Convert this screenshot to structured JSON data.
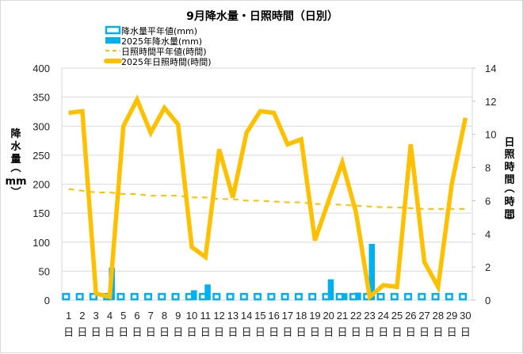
{
  "chart_data": {
    "type": "bar+line",
    "title": "9月降水量・日照時間（日別）",
    "xlabel": "",
    "ylabel": "降水量（mm）",
    "y2label": "日照時間（時間）",
    "ylim": [
      0,
      400
    ],
    "y2lim": [
      0,
      14
    ],
    "yticks": [
      0,
      50,
      100,
      150,
      200,
      250,
      300,
      350,
      400
    ],
    "y2ticks": [
      0,
      2,
      4,
      6,
      8,
      10,
      12,
      14
    ],
    "grid": true,
    "legend_position": "top-left",
    "categories": [
      "1",
      "2",
      "3",
      "4",
      "5",
      "6",
      "7",
      "8",
      "9",
      "10",
      "11",
      "12",
      "13",
      "14",
      "15",
      "16",
      "17",
      "18",
      "19",
      "20",
      "21",
      "22",
      "23",
      "24",
      "25",
      "26",
      "27",
      "28",
      "29",
      "30"
    ],
    "category_suffix": "日",
    "series": [
      {
        "name": "降水量平年値(mm)",
        "kind": "bar-outline",
        "axis": "left",
        "color": "#00b0f0",
        "values": [
          12,
          12,
          12,
          12,
          12,
          12,
          12,
          12,
          12,
          12,
          12,
          12,
          12,
          12,
          12,
          12,
          12,
          12,
          12,
          12,
          12,
          12,
          12,
          12,
          12,
          12,
          12,
          12,
          12,
          12
        ]
      },
      {
        "name": "2025年降水量(mm)",
        "kind": "bar",
        "axis": "left",
        "color": "#00b0f0",
        "values": [
          0,
          0,
          0,
          56,
          0,
          0,
          0,
          0,
          0,
          17,
          27,
          0,
          0,
          0,
          0,
          0,
          0,
          0,
          0,
          36,
          12,
          13,
          97,
          0,
          0,
          0,
          0,
          0,
          0,
          0
        ]
      },
      {
        "name": "日照時間平年値(時間)",
        "kind": "line-dashed",
        "axis": "right",
        "color": "#ffc000",
        "values": [
          6.7,
          6.6,
          6.5,
          6.5,
          6.4,
          6.4,
          6.3,
          6.3,
          6.3,
          6.2,
          6.2,
          6.1,
          6.1,
          6.0,
          6.0,
          5.95,
          5.9,
          5.9,
          5.8,
          5.8,
          5.75,
          5.7,
          5.65,
          5.6,
          5.6,
          5.55,
          5.5,
          5.5,
          5.5,
          5.5
        ]
      },
      {
        "name": "2025年日照時間(時間)",
        "kind": "line",
        "axis": "right",
        "color": "#ffc000",
        "values": [
          11.3,
          11.4,
          0.4,
          0.2,
          10.5,
          12.1,
          10.1,
          11.6,
          10.6,
          3.2,
          2.6,
          9.1,
          6.2,
          10.1,
          11.4,
          11.3,
          9.4,
          9.7,
          3.6,
          6.0,
          8.3,
          5.3,
          0.2,
          0.9,
          0.8,
          9.4,
          2.3,
          0.8,
          7.0,
          11.0
        ]
      }
    ]
  },
  "colors": {
    "rain": "#00b0f0",
    "sun": "#ffc000",
    "grid": "#d9d9d9",
    "frame": "#d9d9d9"
  }
}
